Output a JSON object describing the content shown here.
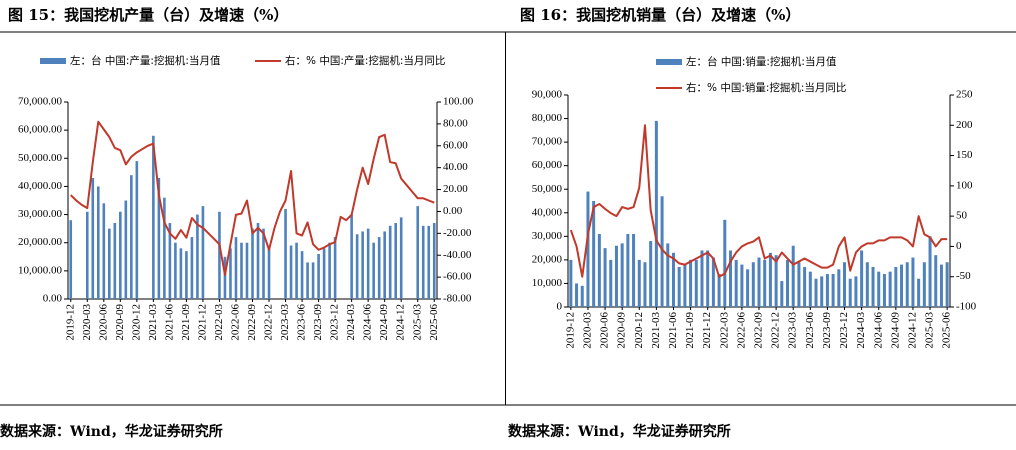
{
  "chart_data": [
    {
      "type": "bar_line",
      "title": "图 15：我国挖机产量（台）及增速（%）",
      "source": "数据来源：Wind，华龙证券研究所",
      "categories": [
        "2019-12",
        null,
        null,
        "2020-03",
        null,
        null,
        "2020-06",
        null,
        null,
        "2020-09",
        null,
        null,
        "2020-12",
        null,
        null,
        "2021-03",
        null,
        null,
        "2021-06",
        null,
        null,
        "2021-09",
        null,
        null,
        "2021-12",
        null,
        null,
        "2022-03",
        null,
        null,
        "2022-06",
        null,
        null,
        "2022-09",
        null,
        null,
        "2022-12",
        null,
        null,
        "2023-03",
        null,
        null,
        "2023-06",
        null,
        null,
        "2023-09",
        null,
        null,
        "2023-12",
        null,
        null,
        "2024-03",
        null,
        null,
        "2024-06",
        null,
        null,
        "2024-09",
        null,
        null,
        "2024-12",
        null,
        null,
        "2025-03",
        null,
        null,
        "2025-06"
      ],
      "legend": "top",
      "series": [
        {
          "name": "左：台 中国:产量:挖掘机:当月值",
          "kind": "bar",
          "color": "#4f81bd",
          "axis": "y",
          "values": [
            28000,
            null,
            null,
            31000,
            43000,
            40000,
            34000,
            25000,
            27000,
            31000,
            35000,
            44000,
            49000,
            null,
            null,
            58000,
            43000,
            36000,
            27000,
            20000,
            18000,
            17000,
            22000,
            30000,
            33000,
            null,
            null,
            31000,
            15000,
            18000,
            22000,
            20000,
            20000,
            25000,
            27000,
            25000,
            18000,
            null,
            null,
            32000,
            19000,
            20000,
            17000,
            13000,
            13000,
            16000,
            18000,
            20000,
            22000,
            null,
            null,
            30000,
            23000,
            24000,
            25000,
            20000,
            22000,
            24000,
            26000,
            27000,
            29000,
            null,
            null,
            33000,
            26000,
            26000,
            27000
          ]
        },
        {
          "name": "右：% 中国:产量:挖掘机:当月同比",
          "kind": "line",
          "color": "#c0392b",
          "axis": "y2",
          "values": [
            15,
            10,
            6,
            3,
            45,
            82,
            75,
            68,
            58,
            56,
            43,
            50,
            54,
            57,
            60,
            62,
            15,
            -10,
            -20,
            -25,
            -17,
            -24,
            -6,
            -12,
            -15,
            -20,
            -25,
            -30,
            -58,
            -30,
            -3,
            -2,
            10,
            -20,
            -15,
            -20,
            -35,
            -15,
            0,
            10,
            37,
            -20,
            -22,
            -10,
            -30,
            -35,
            -33,
            -30,
            -28,
            -5,
            -8,
            -3,
            20,
            40,
            25,
            48,
            68,
            70,
            45,
            44,
            30,
            24,
            18,
            12,
            12,
            10,
            8
          ]
        }
      ],
      "ylim": [
        0,
        70000
      ],
      "yticks": [
        {
          "value": 0,
          "label": "0.00"
        },
        {
          "value": 10000,
          "label": "10,000.00"
        },
        {
          "value": 20000,
          "label": "20,000.00"
        },
        {
          "value": 30000,
          "label": "30,000.00"
        },
        {
          "value": 40000,
          "label": "40,000.00"
        },
        {
          "value": 50000,
          "label": "50,000.00"
        },
        {
          "value": 60000,
          "label": "60,000.00"
        },
        {
          "value": 70000,
          "label": "70,000.00"
        }
      ],
      "y2lim": [
        -80,
        100
      ],
      "y2ticks": [
        {
          "value": -80,
          "label": "-80.00"
        },
        {
          "value": -60,
          "label": "-60.00"
        },
        {
          "value": -40,
          "label": "-40.00"
        },
        {
          "value": -20,
          "label": "-20.00"
        },
        {
          "value": 0,
          "label": "0.00"
        },
        {
          "value": 20,
          "label": "20.00"
        },
        {
          "value": 40,
          "label": "40.00"
        },
        {
          "value": 60,
          "label": "60.00"
        },
        {
          "value": 80,
          "label": "80.00"
        },
        {
          "value": 100,
          "label": "100.00"
        }
      ],
      "grid": false
    },
    {
      "type": "bar_line",
      "title": "图 16：我国挖机销量（台）及增速（%）",
      "source": "数据来源：Wind，华龙证券研究所",
      "categories": [
        "2019-12",
        null,
        null,
        "2020-03",
        null,
        null,
        "2020-06",
        null,
        null,
        "2020-09",
        null,
        null,
        "2020-12",
        null,
        null,
        "2021-03",
        null,
        null,
        "2021-06",
        null,
        null,
        "2021-09",
        null,
        null,
        "2021-12",
        null,
        null,
        "2022-03",
        null,
        null,
        "2022-06",
        null,
        null,
        "2022-09",
        null,
        null,
        "2022-12",
        null,
        null,
        "2023-03",
        null,
        null,
        "2023-06",
        null,
        null,
        "2023-09",
        null,
        null,
        "2023-12",
        null,
        null,
        "2024-03",
        null,
        null,
        "2024-06",
        null,
        null,
        "2024-09",
        null,
        null,
        "2024-12",
        null,
        null,
        "2025-03",
        null,
        null,
        "2025-06"
      ],
      "legend": "top",
      "series": [
        {
          "name": "左：台 中国:销量:挖掘机:当月值",
          "kind": "bar",
          "color": "#4f81bd",
          "axis": "y",
          "values": [
            20000,
            10000,
            9000,
            49000,
            45000,
            31000,
            25000,
            20000,
            26000,
            27000,
            31000,
            31000,
            20000,
            19000,
            28000,
            79000,
            47000,
            27000,
            23000,
            17000,
            18000,
            20000,
            20000,
            24000,
            24000,
            21000,
            14000,
            37000,
            24000,
            20000,
            18000,
            16000,
            19000,
            21000,
            20000,
            23000,
            22000,
            11000,
            20000,
            26000,
            19000,
            17000,
            15000,
            12000,
            13000,
            14000,
            14000,
            16000,
            19000,
            12000,
            13000,
            24000,
            19000,
            17000,
            15000,
            14000,
            15000,
            17000,
            18000,
            19000,
            21000,
            12000,
            19000,
            30000,
            22000,
            18000,
            19000
          ]
        },
        {
          "name": "右：% 中国:销量:挖掘机:当月同比",
          "kind": "line",
          "color": "#c0392b",
          "axis": "y2",
          "values": [
            27,
            0,
            -50,
            20,
            65,
            70,
            62,
            55,
            50,
            65,
            62,
            65,
            97,
            200,
            60,
            10,
            -5,
            -15,
            -20,
            -28,
            -30,
            -25,
            -20,
            -15,
            -10,
            -20,
            -50,
            -45,
            -25,
            -10,
            0,
            5,
            8,
            15,
            -20,
            -15,
            -25,
            -10,
            -20,
            -30,
            -25,
            -20,
            -25,
            -30,
            -35,
            -35,
            -30,
            0,
            15,
            -40,
            -10,
            0,
            5,
            5,
            10,
            10,
            15,
            15,
            15,
            10,
            0,
            50,
            20,
            15,
            0,
            12,
            12
          ]
        }
      ],
      "ylim": [
        0,
        90000
      ],
      "yticks": [
        0,
        {
          "value": 10000,
          "label": "10,000"
        },
        {
          "value": 20000,
          "label": "20,000"
        },
        {
          "value": 30000,
          "label": "30,000"
        },
        {
          "value": 40000,
          "label": "40,000"
        },
        {
          "value": 50000,
          "label": "50,000"
        },
        {
          "value": 60000,
          "label": "60,000"
        },
        {
          "value": 70000,
          "label": "70,000"
        },
        {
          "value": 80000,
          "label": "80,000"
        },
        {
          "value": 90000,
          "label": "90,000"
        }
      ],
      "y2lim": [
        -100,
        250
      ],
      "y2ticks": [
        -100,
        -50,
        0,
        50,
        100,
        150,
        200,
        250
      ],
      "grid": false
    }
  ]
}
